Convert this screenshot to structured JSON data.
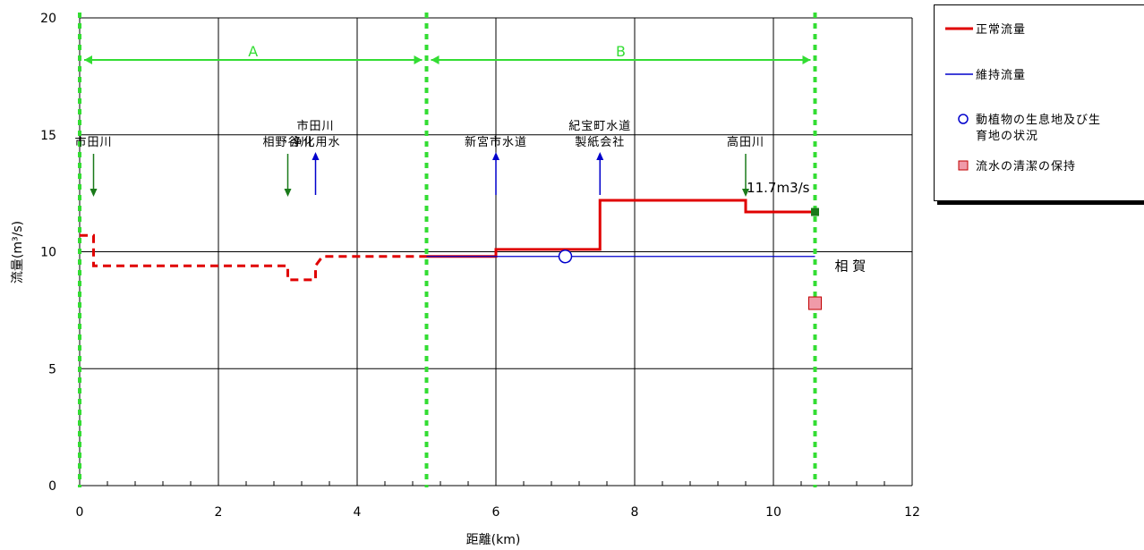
{
  "chart_data": {
    "type": "line",
    "xlabel": "距離(km)",
    "ylabel": "流量(m³/s)",
    "xlim": [
      0,
      12
    ],
    "ylim": [
      0,
      20
    ],
    "x_ticks": [
      "0",
      "2",
      "4",
      "6",
      "8",
      "10",
      "12"
    ],
    "y_ticks": [
      "0",
      "5",
      "10",
      "15",
      "20"
    ],
    "grid": true,
    "legend_position": "right",
    "series": [
      {
        "name": "正常流量",
        "color": "#e00000",
        "style": "dashed",
        "points": [
          [
            0.0,
            10.7
          ],
          [
            0.2,
            10.7
          ],
          [
            0.2,
            10.5
          ],
          [
            0.2,
            9.4
          ],
          [
            3.0,
            9.4
          ],
          [
            3.0,
            8.8
          ],
          [
            3.4,
            8.8
          ],
          [
            3.4,
            9.4
          ],
          [
            3.5,
            9.8
          ],
          [
            5.0,
            9.8
          ]
        ]
      },
      {
        "name": "正常流量",
        "color": "#e00000",
        "style": "solid",
        "points": [
          [
            5.0,
            9.8
          ],
          [
            6.0,
            9.8
          ],
          [
            6.0,
            10.1
          ],
          [
            7.5,
            10.1
          ],
          [
            7.5,
            12.2
          ],
          [
            9.6,
            12.2
          ],
          [
            9.6,
            11.7
          ],
          [
            10.6,
            11.7
          ]
        ]
      },
      {
        "name": "維持流量",
        "color": "#0000cc",
        "style": "solid",
        "points": [
          [
            5.0,
            9.8
          ],
          [
            10.6,
            9.8
          ]
        ]
      }
    ],
    "markers": [
      {
        "name": "動植物の生息地及び生育地の状況",
        "shape": "circle",
        "x": 7.0,
        "y": 9.8,
        "fill": "#ffffff",
        "stroke": "#0000cc"
      },
      {
        "name": "流水の清潔の保持",
        "shape": "square",
        "x": 10.6,
        "y": 7.8,
        "fill": "#f09aa9",
        "stroke": "#c00000"
      },
      {
        "name": "",
        "shape": "square-small",
        "x": 10.6,
        "y": 11.7,
        "fill": "#1a7a1a",
        "stroke": "#1a7a1a"
      }
    ],
    "reach_boundaries": [
      0.0,
      5.0,
      10.6
    ],
    "reaches": [
      {
        "label": "A",
        "from": 0.0,
        "to": 5.0
      },
      {
        "label": "B",
        "from": 5.0,
        "to": 10.6
      }
    ],
    "reach_color": "#33dd33",
    "inflow_arrows": [
      {
        "x": 0.2,
        "lines": [
          "市田川"
        ],
        "direction": "down",
        "color": "#1a7a1a"
      },
      {
        "x": 3.0,
        "lines": [
          "相野谷川"
        ],
        "direction": "down",
        "color": "#1a7a1a"
      },
      {
        "x": 9.6,
        "lines": [
          "高田川"
        ],
        "direction": "down",
        "color": "#1a7a1a"
      }
    ],
    "withdrawal_arrows": [
      {
        "x": 3.4,
        "lines": [
          "市田川",
          "浄化用水"
        ],
        "direction": "up",
        "color": "#0000cc"
      },
      {
        "x": 6.0,
        "lines": [
          "新宮市水道"
        ],
        "direction": "up",
        "color": "#0000cc"
      },
      {
        "x": 7.5,
        "lines": [
          "紀宝町水道",
          "製紙会社"
        ],
        "direction": "up",
        "color": "#0000cc"
      }
    ],
    "annotations": [
      {
        "text": "11.7m3/s",
        "x": 10.6,
        "y": 11.7
      },
      {
        "text": "相 賀",
        "x": 10.6,
        "y": 9.8
      }
    ]
  },
  "legend": {
    "items": [
      {
        "label": "正常流量",
        "symbol": "line",
        "color": "#e00000"
      },
      {
        "label": "維持流量",
        "symbol": "line-thin",
        "color": "#0000cc"
      },
      {
        "label": "動植物の生息地及び生",
        "label2": "育地の状況",
        "symbol": "circle",
        "color": "#0000cc"
      },
      {
        "label": "流水の清潔の保持",
        "symbol": "square",
        "color": "#f09aa9"
      }
    ]
  }
}
